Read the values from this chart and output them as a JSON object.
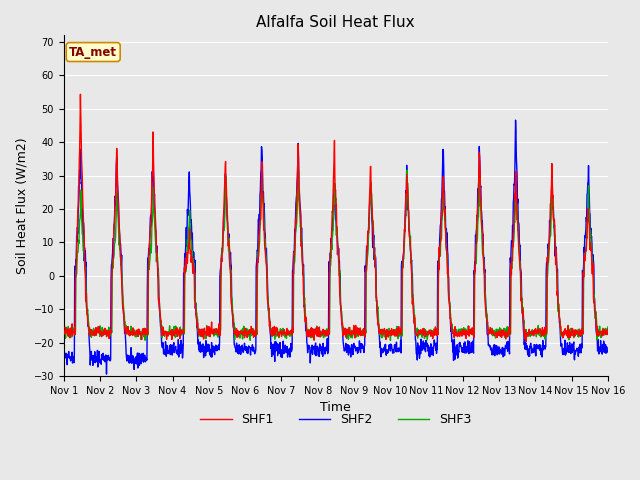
{
  "title": "Alfalfa Soil Heat Flux",
  "ylabel": "Soil Heat Flux (W/m2)",
  "xlabel": "Time",
  "ylim": [
    -30,
    72
  ],
  "yticks": [
    -30,
    -20,
    -10,
    0,
    10,
    20,
    30,
    40,
    50,
    60,
    70
  ],
  "n_days": 15,
  "colors": {
    "SHF1": "#FF0000",
    "SHF2": "#0000FF",
    "SHF3": "#00AA00"
  },
  "legend_label": "TA_met",
  "legend_box_facecolor": "#FFFFCC",
  "legend_box_edgecolor": "#CC8800",
  "fig_facecolor": "#E8E8E8",
  "plot_facecolor": "#E8E8E8",
  "grid_color": "#FFFFFF",
  "title_fontsize": 11,
  "tick_fontsize": 7,
  "label_fontsize": 9,
  "legend_fontsize": 9,
  "linewidth": 1.0,
  "day_peaks_shf1": [
    60,
    41,
    45,
    13,
    39,
    35,
    43,
    43,
    37,
    35,
    35,
    42,
    35,
    35,
    23
  ],
  "day_peaks_shf2": [
    41,
    38,
    38,
    33,
    32,
    44,
    43,
    30,
    30,
    35,
    42,
    42,
    48,
    30,
    35
  ],
  "day_peaks_shf3": [
    26,
    26,
    26,
    20,
    32,
    35,
    35,
    32,
    32,
    35,
    30,
    32,
    30,
    30,
    28
  ],
  "night_shf1": -17,
  "night_shf2": -22,
  "night_shf3": -17
}
